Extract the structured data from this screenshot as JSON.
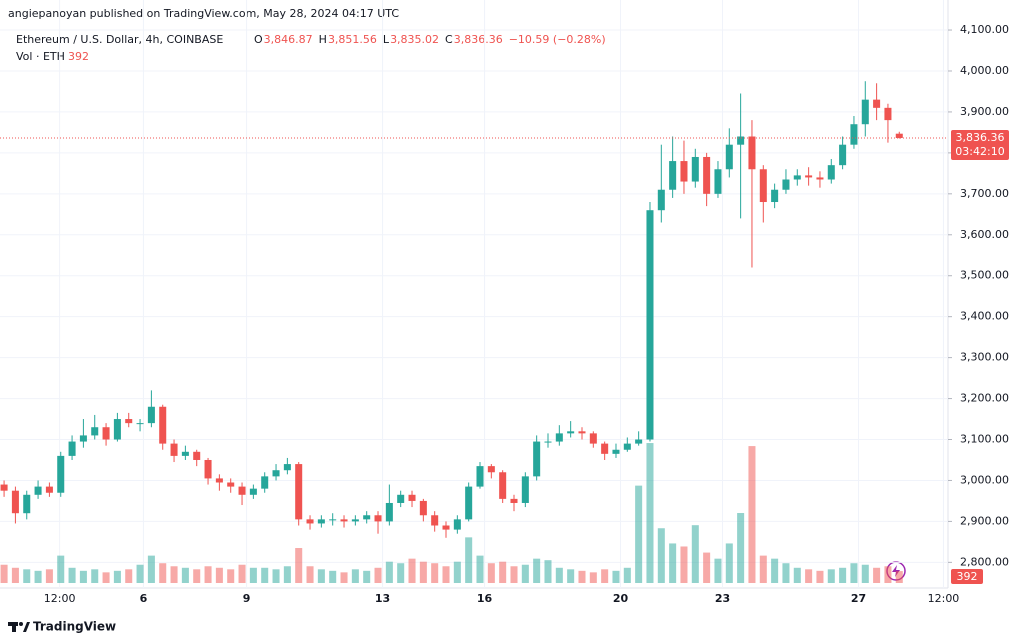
{
  "header": {
    "publisher": "angiepanoyan published on TradingView.com, May 28, 2024 04:17 UTC",
    "symbol": "Ethereum / U.S. Dollar, 4h, COINBASE",
    "ohlc": [
      {
        "key": "O",
        "value": "3,846.87"
      },
      {
        "key": "H",
        "value": "3,851.56"
      },
      {
        "key": "L",
        "value": "3,835.02"
      },
      {
        "key": "C",
        "value": "3,836.36"
      }
    ],
    "change": "−10.59 (−0.28%)",
    "vol_label": "Vol · ETH",
    "vol_value": "392"
  },
  "footer": {
    "brand": "TradingView"
  },
  "chart_data": {
    "type": "candlestick",
    "up_color": "#26a69a",
    "down_color": "#ef5350",
    "open": [
      2990,
      2975,
      2920,
      2965,
      2985,
      2970,
      3060,
      3095,
      3110,
      3130,
      3100,
      3150,
      3140,
      3140,
      3180,
      3090,
      3060,
      3070,
      3050,
      3005,
      2995,
      2985,
      2965,
      2980,
      3010,
      3025,
      3040,
      2905,
      2895,
      2905,
      2905,
      2900,
      2905,
      2915,
      2900,
      2945,
      2965,
      2950,
      2915,
      2890,
      2880,
      2905,
      2985,
      3035,
      3020,
      2955,
      2945,
      3010,
      3095,
      3095,
      3115,
      3120,
      3115,
      3090,
      3065,
      3075,
      3090,
      3100,
      3660,
      3710,
      3780,
      3730,
      3790,
      3700,
      3760,
      3820,
      3840,
      3760,
      3680,
      3710,
      3735,
      3745,
      3740,
      3735,
      3770,
      3820,
      3870,
      3930,
      3910,
      3846.87
    ],
    "high": [
      3000,
      2985,
      2975,
      3000,
      2995,
      3070,
      3110,
      3150,
      3160,
      3140,
      3165,
      3165,
      3150,
      3220,
      3185,
      3100,
      3085,
      3075,
      3055,
      3015,
      3005,
      2995,
      2990,
      3020,
      3040,
      3055,
      3045,
      2915,
      2915,
      2920,
      2915,
      2915,
      2925,
      2925,
      2990,
      2975,
      2975,
      2955,
      2925,
      2900,
      2915,
      2995,
      3045,
      3040,
      3025,
      2965,
      3020,
      3110,
      3115,
      3135,
      3145,
      3130,
      3120,
      3095,
      3090,
      3105,
      3120,
      3680,
      3820,
      3840,
      3830,
      3810,
      3800,
      3780,
      3860,
      3945,
      3880,
      3770,
      3725,
      3760,
      3760,
      3765,
      3755,
      3785,
      3840,
      3890,
      3975,
      3970,
      3920,
      3851.56
    ],
    "low": [
      2960,
      2895,
      2905,
      2955,
      2960,
      2960,
      3050,
      3080,
      3100,
      3085,
      3095,
      3130,
      3120,
      3130,
      3075,
      3045,
      3050,
      3035,
      2990,
      2975,
      2970,
      2940,
      2955,
      2970,
      3000,
      3015,
      2890,
      2880,
      2885,
      2890,
      2885,
      2890,
      2895,
      2870,
      2890,
      2935,
      2935,
      2900,
      2875,
      2860,
      2870,
      2900,
      2980,
      3005,
      2945,
      2925,
      2935,
      3000,
      3080,
      3085,
      3105,
      3100,
      3080,
      3050,
      3055,
      3070,
      3085,
      3095,
      3630,
      3690,
      3700,
      3715,
      3670,
      3690,
      3740,
      3640,
      3520,
      3630,
      3665,
      3700,
      3720,
      3720,
      3715,
      3725,
      3760,
      3810,
      3840,
      3880,
      3825,
      3835.02
    ],
    "close": [
      2975,
      2920,
      2965,
      2985,
      2970,
      3060,
      3095,
      3110,
      3130,
      3100,
      3150,
      3140,
      3140,
      3180,
      3090,
      3060,
      3070,
      3050,
      3005,
      2995,
      2985,
      2965,
      2980,
      3010,
      3025,
      3040,
      2905,
      2895,
      2905,
      2905,
      2900,
      2905,
      2915,
      2900,
      2945,
      2965,
      2950,
      2915,
      2890,
      2880,
      2905,
      2985,
      3035,
      3020,
      2955,
      2945,
      3010,
      3095,
      3095,
      3115,
      3120,
      3115,
      3090,
      3065,
      3075,
      3090,
      3100,
      3660,
      3710,
      3780,
      3730,
      3790,
      3700,
      3760,
      3820,
      3840,
      3760,
      3680,
      3710,
      3735,
      3745,
      3740,
      3735,
      3770,
      3820,
      3870,
      3930,
      3910,
      3880,
      3836.36
    ],
    "volume": [
      600,
      500,
      450,
      400,
      450,
      900,
      500,
      400,
      450,
      350,
      400,
      450,
      600,
      900,
      650,
      550,
      500,
      450,
      550,
      500,
      450,
      600,
      500,
      500,
      450,
      550,
      1150,
      550,
      450,
      400,
      350,
      450,
      400,
      500,
      700,
      650,
      800,
      700,
      650,
      550,
      700,
      1500,
      900,
      650,
      700,
      550,
      600,
      800,
      750,
      500,
      450,
      400,
      350,
      450,
      400,
      500,
      3200,
      4600,
      1800,
      1300,
      1200,
      1900,
      1000,
      800,
      1300,
      2300,
      4500,
      900,
      800,
      650,
      500,
      450,
      400,
      450,
      500,
      650,
      600,
      500,
      550,
      392
    ],
    "volume_lim": [
      0,
      4700
    ],
    "xlim": [
      -0.36,
      83.3
    ],
    "xticks": [
      {
        "value": 4.9,
        "label": "12:00"
      },
      {
        "value": 12.3,
        "label": "6"
      },
      {
        "value": 21.4,
        "label": "9"
      },
      {
        "value": 33.4,
        "label": "13"
      },
      {
        "value": 42.4,
        "label": "16"
      },
      {
        "value": 54.4,
        "label": "20"
      },
      {
        "value": 63.4,
        "label": "23"
      },
      {
        "value": 75.4,
        "label": "27"
      },
      {
        "value": 82.9,
        "label": "12:00"
      }
    ],
    "ylim": [
      2700,
      4125
    ],
    "yticks": [
      {
        "value": 2800,
        "label": "2,800.00"
      },
      {
        "value": 2900,
        "label": "2,900.00"
      },
      {
        "value": 3000,
        "label": "3,000.00"
      },
      {
        "value": 3100,
        "label": "3,100.00"
      },
      {
        "value": 3200,
        "label": "3,200.00"
      },
      {
        "value": 3300,
        "label": "3,300.00"
      },
      {
        "value": 3400,
        "label": "3,400.00"
      },
      {
        "value": 3500,
        "label": "3,500.00"
      },
      {
        "value": 3600,
        "label": "3,600.00"
      },
      {
        "value": 3700,
        "label": "3,700.00"
      },
      {
        "value": 3800,
        "label": "3,800.00"
      },
      {
        "value": 3900,
        "label": "3,900.00"
      },
      {
        "value": 4000,
        "label": "4,000.00"
      },
      {
        "value": 4100,
        "label": "4,100.00"
      }
    ],
    "price_label": "3,836.36",
    "countdown": "03:42:10",
    "grid": true
  }
}
